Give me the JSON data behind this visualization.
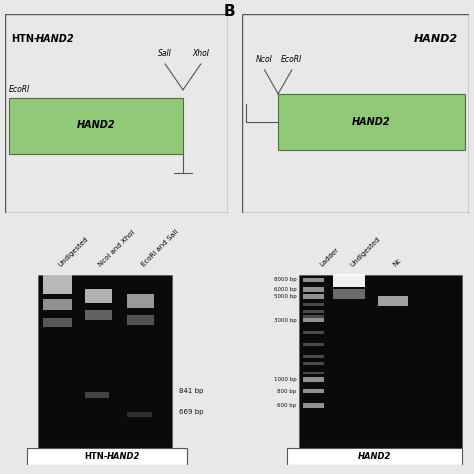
{
  "bg_color": "#f0f0f0",
  "white": "#ffffff",
  "black": "#000000",
  "gene_color": "#90c978",
  "gel_bg": "#111111",
  "panel_A": {
    "title": "HTN-HAND2",
    "enzyme_left": "EcoRI",
    "enzyme_right1": "SalI",
    "enzyme_right2": "XhoI",
    "gene_label": "HAND2",
    "gel_labels": [
      "Undigested",
      "NcoI and XhoI",
      "EcoRI and SalI"
    ],
    "gel_annotations": [
      "841 bp",
      "669 bp"
    ],
    "bottom_label": "HTN-HAND2"
  },
  "panel_B": {
    "title": "HAND2",
    "enzyme_left1": "NcoI",
    "enzyme_left2": "EcoRI",
    "gene_label": "HAND2",
    "gel_labels": [
      "Ladder",
      "Undigested",
      "Nc"
    ],
    "ladder_labels": [
      "8000 bp",
      "6000 bp",
      "5000 bp",
      "3000 bp",
      "1000 bp",
      "800 bp",
      "600 bp"
    ],
    "bottom_label": "HAND2"
  }
}
